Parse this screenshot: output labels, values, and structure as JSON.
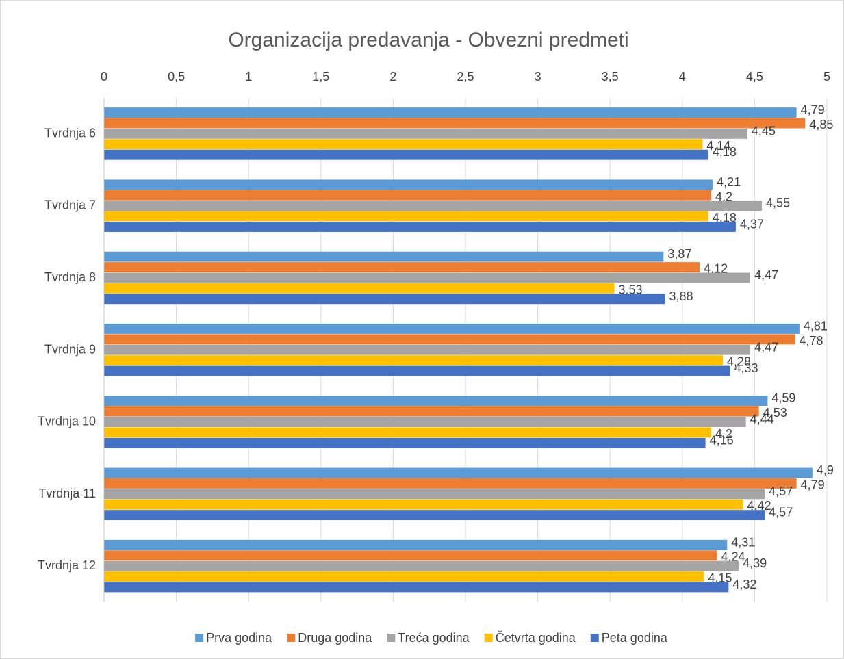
{
  "chart_data": {
    "type": "hbar",
    "title": "Organizacija predavanja - Obvezni predmeti",
    "categories": [
      "Tvrdnja 6",
      "Tvrdnja 7",
      "Tvrdnja 8",
      "Tvrdnja 9",
      "Tvrdnja 10",
      "Tvrdnja 11",
      "Tvrdnja 12"
    ],
    "series": [
      {
        "name": "Prva godina",
        "color": "#5b9bd5",
        "values": [
          4.79,
          4.21,
          3.87,
          4.81,
          4.59,
          4.9,
          4.31
        ],
        "value_labels": [
          "4,79",
          "4,21",
          "3,87",
          "4,81",
          "4,59",
          "4,9",
          "4,31"
        ]
      },
      {
        "name": "Druga godina",
        "color": "#ed7d31",
        "values": [
          4.85,
          4.2,
          4.12,
          4.78,
          4.53,
          4.79,
          4.24
        ],
        "value_labels": [
          "4,85",
          "4,2",
          "4,12",
          "4,78",
          "4,53",
          "4,79",
          "4,24"
        ]
      },
      {
        "name": "Treća godina",
        "color": "#a5a5a5",
        "values": [
          4.45,
          4.55,
          4.47,
          4.47,
          4.44,
          4.57,
          4.39
        ],
        "value_labels": [
          "4,45",
          "4,55",
          "4,47",
          "4,47",
          "4,44",
          "4,57",
          "4,39"
        ]
      },
      {
        "name": "Četvrta godina",
        "color": "#ffc000",
        "values": [
          4.14,
          4.18,
          3.53,
          4.28,
          4.2,
          4.42,
          4.15
        ],
        "value_labels": [
          "4,14",
          "4,18",
          "3,53",
          "4,28",
          "4,2",
          "4,42",
          "4,15"
        ]
      },
      {
        "name": "Peta godina",
        "color": "#4472c4",
        "values": [
          4.18,
          4.37,
          3.88,
          4.33,
          4.16,
          4.57,
          4.32
        ],
        "value_labels": [
          "4,18",
          "4,37",
          "3,88",
          "4,33",
          "4,16",
          "4,57",
          "4,32"
        ]
      }
    ],
    "xlim": [
      0,
      5
    ],
    "xticks": [
      0,
      {
        "value": 0.5,
        "label": "0,5"
      },
      1,
      {
        "value": 1.5,
        "label": "1,5"
      },
      2,
      {
        "value": 2.5,
        "label": "2,5"
      },
      3,
      {
        "value": 3.5,
        "label": "3,5"
      },
      4,
      {
        "value": 4.5,
        "label": "4,5"
      },
      5
    ],
    "grid": true,
    "legend": "bottom"
  }
}
